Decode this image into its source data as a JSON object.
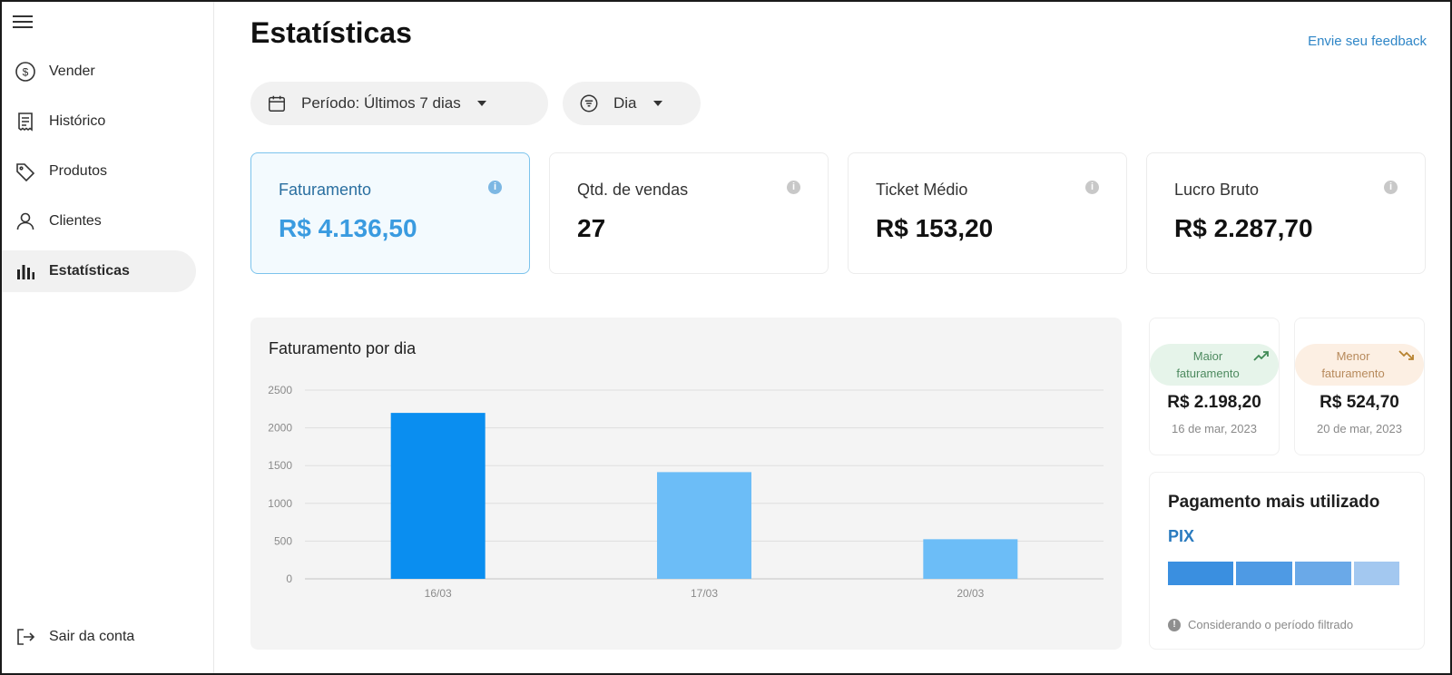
{
  "sidebar": {
    "items": [
      {
        "label": "Vender",
        "icon": "dollar-circle-icon"
      },
      {
        "label": "Histórico",
        "icon": "receipt-icon"
      },
      {
        "label": "Produtos",
        "icon": "tag-icon"
      },
      {
        "label": "Clientes",
        "icon": "person-icon"
      },
      {
        "label": "Estatísticas",
        "icon": "bar-chart-icon",
        "active": true
      }
    ],
    "logout_label": "Sair da conta"
  },
  "header": {
    "title": "Estatísticas",
    "feedback_link": "Envie seu feedback"
  },
  "filters": {
    "period_label": "Período: Últimos 7 dias",
    "group_label": "Dia"
  },
  "kpis": [
    {
      "label": "Faturamento",
      "value": "R$ 4.136,50",
      "active": true
    },
    {
      "label": "Qtd. de vendas",
      "value": "27"
    },
    {
      "label": "Ticket Médio",
      "value": "R$ 153,20"
    },
    {
      "label": "Lucro Bruto",
      "value": "R$ 2.287,70"
    }
  ],
  "chart_card": {
    "title": "Faturamento por dia"
  },
  "chart_data": {
    "type": "bar",
    "title": "Faturamento por dia",
    "categories": [
      "16/03",
      "17/03",
      "20/03"
    ],
    "values": [
      2198.2,
      1413.6,
      524.7
    ],
    "ylim": [
      0,
      2500
    ],
    "yticks": [
      0,
      500,
      1000,
      1500,
      2000,
      2500
    ],
    "colors": [
      "#0a8ef0",
      "#6cbdf7",
      "#6cbdf7"
    ],
    "grid": true
  },
  "highlights": {
    "max": {
      "label": "Maior faturamento",
      "value": "R$ 2.198,20",
      "date": "16 de mar, 2023",
      "color": "#4d8a5f"
    },
    "min": {
      "label": "Menor faturamento",
      "value": "R$ 524,70",
      "date": "20 de mar, 2023",
      "color": "#b78a5c"
    }
  },
  "payment": {
    "title": "Pagamento mais utilizado",
    "method": "PIX",
    "note": "Considerando o período filtrado",
    "bar_colors": [
      "#3a8fe0",
      "#4e9ae4",
      "#6aa9e8",
      "#a3c8f0"
    ]
  }
}
